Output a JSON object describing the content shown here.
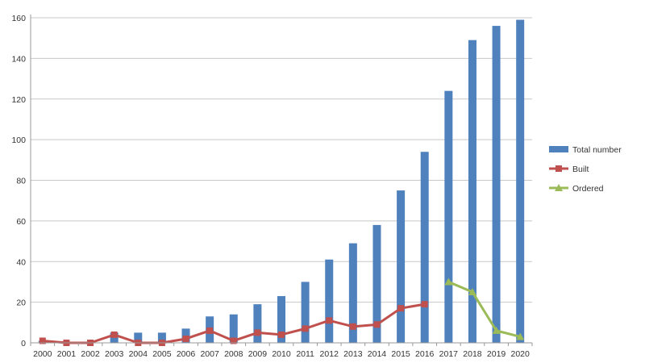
{
  "chart_data": {
    "type": "bar",
    "title": "",
    "xlabel": "",
    "ylabel": "",
    "categories": [
      "2000",
      "2001",
      "2002",
      "2003",
      "2004",
      "2005",
      "2006",
      "2007",
      "2008",
      "2009",
      "2010",
      "2011",
      "2012",
      "2013",
      "2014",
      "2015",
      "2016",
      "2017",
      "2018",
      "2019",
      "2020"
    ],
    "ylim": [
      0,
      160
    ],
    "yticks": [
      0,
      20,
      40,
      60,
      80,
      100,
      120,
      140,
      160
    ],
    "grid": true,
    "legend_position": "right",
    "series": [
      {
        "name": "Total number",
        "kind": "bar",
        "color": "#4f81bd",
        "values": [
          1,
          0,
          0,
          5,
          5,
          5,
          7,
          13,
          14,
          19,
          23,
          30,
          41,
          49,
          58,
          75,
          94,
          124,
          149,
          156,
          159
        ]
      },
      {
        "name": "Built",
        "kind": "line",
        "marker": "square",
        "color": "#c0504d",
        "values": [
          1,
          0,
          0,
          4,
          0,
          0,
          2,
          6,
          1,
          5,
          4,
          7,
          11,
          8,
          9,
          17,
          19,
          null,
          null,
          null,
          null
        ]
      },
      {
        "name": "Ordered",
        "kind": "line",
        "marker": "triangle",
        "color": "#9bbb59",
        "values": [
          null,
          null,
          null,
          null,
          null,
          null,
          null,
          null,
          null,
          null,
          null,
          null,
          null,
          null,
          null,
          null,
          null,
          30,
          25,
          6,
          3
        ]
      }
    ]
  }
}
